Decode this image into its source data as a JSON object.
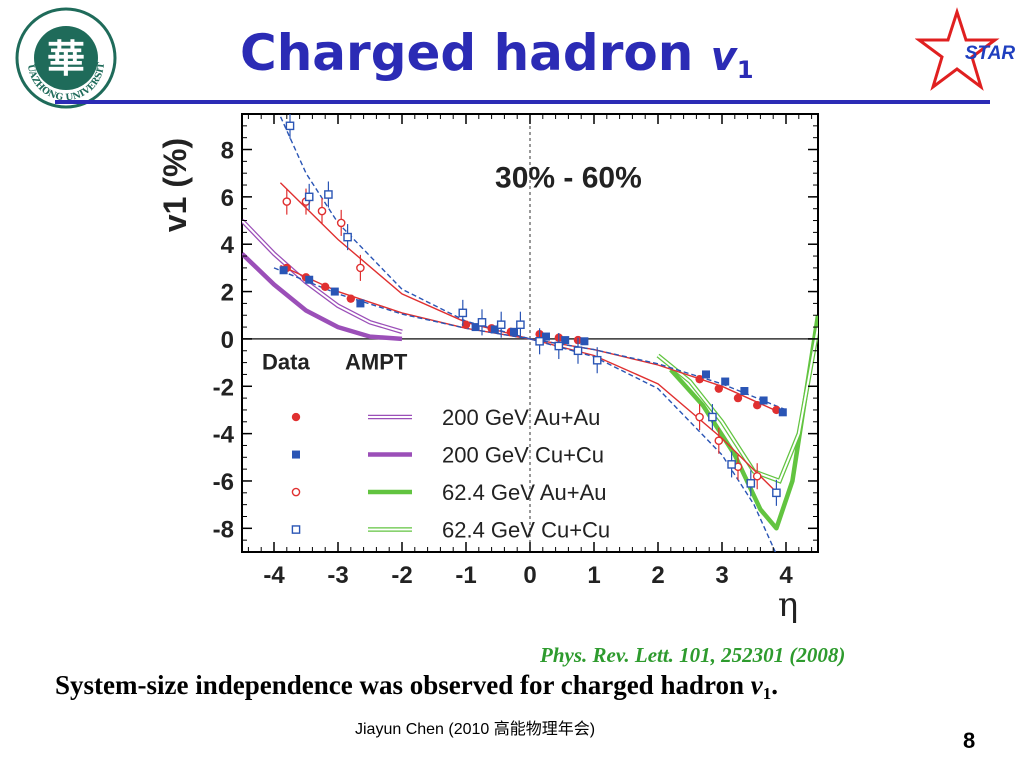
{
  "header": {
    "title_text": "Charged hadron ",
    "title_symbol": "v",
    "title_subscript": "1",
    "logo_text": "HUAZHONG UNIVERSITY",
    "logo_glyph": "華",
    "star_logo_text": "STAR"
  },
  "colors": {
    "title": "#2b2bb5",
    "red_data": "#e03030",
    "blue_data": "#2a55b5",
    "purple_model": "#9b4fb8",
    "green_model": "#62c440",
    "citation": "#2e9b2e"
  },
  "chart_data": {
    "type": "scatter",
    "xlabel": "η",
    "ylabel": "v1 (%)",
    "xlim": [
      -4.5,
      4.5
    ],
    "ylim": [
      -9,
      9.5
    ],
    "xticks": [
      "-4",
      "-3",
      "-2",
      "-1",
      "0",
      "1",
      "2",
      "3",
      "4"
    ],
    "yticks": [
      "8",
      "6",
      "4",
      "2",
      "0",
      "-2",
      "-4",
      "-6",
      "-8"
    ],
    "annotation": "30% - 60%",
    "legend_title_data": "Data",
    "legend_title_model": "AMPT",
    "legend_position": "lower-left",
    "grid": false,
    "series": [
      {
        "name": "200 GeV Au+Au",
        "marker": "filled-circle",
        "color": "#e03030",
        "x": [
          -3.8,
          -3.5,
          -3.2,
          -2.8,
          -1.0,
          -0.6,
          -0.3,
          0.15,
          0.45,
          0.75,
          2.65,
          2.95,
          3.25,
          3.55,
          3.85
        ],
        "y": [
          3.0,
          2.6,
          2.2,
          1.7,
          0.6,
          0.45,
          0.3,
          0.2,
          0.05,
          -0.05,
          -1.7,
          -2.1,
          -2.5,
          -2.8,
          -3.0
        ]
      },
      {
        "name": "200 GeV Cu+Cu",
        "marker": "filled-square",
        "color": "#2a55b5",
        "x": [
          -3.85,
          -3.45,
          -3.05,
          -2.65,
          -0.85,
          -0.55,
          -0.25,
          0.25,
          0.55,
          0.85,
          2.75,
          3.05,
          3.35,
          3.65,
          3.95
        ],
        "y": [
          2.9,
          2.5,
          2.0,
          1.5,
          0.5,
          0.4,
          0.3,
          0.1,
          -0.05,
          -0.1,
          -1.5,
          -1.8,
          -2.2,
          -2.6,
          -3.1
        ]
      },
      {
        "name": "62.4 GeV Au+Au",
        "marker": "open-circle",
        "color": "#e03030",
        "x": [
          -3.8,
          -3.5,
          -3.25,
          -2.95,
          -2.65,
          2.65,
          2.95,
          3.25,
          3.55
        ],
        "y": [
          5.8,
          5.8,
          5.4,
          4.9,
          3.0,
          -3.3,
          -4.3,
          -5.4,
          -5.8
        ]
      },
      {
        "name": "62.4 GeV Cu+Cu",
        "marker": "open-square",
        "color": "#2a55b5",
        "x": [
          -3.75,
          -3.45,
          -3.15,
          -2.85,
          -1.05,
          -0.75,
          -0.45,
          -0.15,
          0.15,
          0.45,
          0.75,
          1.05,
          2.85,
          3.15,
          3.45,
          3.85
        ],
        "y": [
          9.0,
          6.0,
          6.1,
          4.3,
          1.1,
          0.7,
          0.6,
          0.6,
          -0.1,
          -0.3,
          -0.5,
          -0.9,
          -3.3,
          -5.3,
          -6.1,
          -6.5
        ]
      }
    ],
    "models": [
      {
        "name": "200 GeV Au+Au",
        "style": "double-thin",
        "color": "#9b4fb8",
        "x": [
          -4.5,
          -4.0,
          -3.5,
          -3.0,
          -2.5,
          -2.0
        ],
        "y": [
          5.0,
          3.6,
          2.4,
          1.4,
          0.7,
          0.3
        ]
      },
      {
        "name": "200 GeV Cu+Cu",
        "style": "thick",
        "color": "#9b4fb8",
        "x": [
          -4.5,
          -4.0,
          -3.5,
          -3.0,
          -2.5,
          -2.0
        ],
        "y": [
          3.6,
          2.3,
          1.2,
          0.5,
          0.1,
          0.0
        ]
      },
      {
        "name": "62.4 GeV Au+Au",
        "style": "thick",
        "color": "#62c440",
        "x": [
          2.2,
          2.7,
          3.2,
          3.6,
          3.85,
          4.1,
          4.5
        ],
        "y": [
          -1.3,
          -2.8,
          -4.9,
          -7.2,
          -8.0,
          -6.0,
          1.0
        ]
      },
      {
        "name": "62.4 GeV Cu+Cu",
        "style": "double-thin",
        "color": "#62c440",
        "x": [
          2.0,
          2.5,
          3.0,
          3.5,
          3.9,
          4.2,
          4.5
        ],
        "y": [
          -0.7,
          -1.8,
          -3.5,
          -5.6,
          -6.0,
          -4.0,
          0.5
        ]
      }
    ],
    "fits": [
      {
        "style": "solid",
        "color": "#e03030",
        "x": [
          -3.9,
          -3.0,
          -2.0,
          -1.0,
          0.0,
          1.0,
          2.0,
          3.0,
          3.9
        ],
        "y": [
          6.6,
          4.2,
          1.9,
          0.7,
          0.0,
          -0.7,
          -1.9,
          -4.2,
          -6.6
        ]
      },
      {
        "style": "solid",
        "color": "#e03030",
        "x": [
          -3.9,
          -3.0,
          -2.0,
          -1.0,
          0.0,
          1.0,
          2.0,
          3.0,
          3.9
        ],
        "y": [
          3.1,
          2.0,
          1.1,
          0.45,
          0.0,
          -0.45,
          -1.1,
          -2.0,
          -3.1
        ]
      },
      {
        "style": "dashed",
        "color": "#2a55b5",
        "x": [
          -4.0,
          -3.5,
          -3.0,
          -2.0,
          -1.0,
          0.0,
          1.0,
          2.0,
          3.0,
          3.5,
          4.0
        ],
        "y": [
          10.0,
          7.0,
          4.9,
          2.1,
          0.75,
          0.0,
          -0.75,
          -2.1,
          -4.9,
          -7.0,
          -10.0
        ]
      },
      {
        "style": "dashed",
        "color": "#2a55b5",
        "x": [
          -4.0,
          -3.0,
          -2.0,
          -1.0,
          0.0,
          1.0,
          2.0,
          3.0,
          4.0
        ],
        "y": [
          3.0,
          1.9,
          1.05,
          0.45,
          0.0,
          -0.45,
          -1.05,
          -1.9,
          -3.0
        ]
      }
    ]
  },
  "footer": {
    "citation": "Phys. Rev. Lett. 101, 252301 (2008)",
    "conclusion_text": "System-size independence was observed for charged hadron ",
    "conclusion_symbol": "v",
    "conclusion_subscript": "1",
    "conclusion_end": ".",
    "presenter": "Jiayun Chen (2010 高能物理年会)",
    "page_number": "8"
  }
}
